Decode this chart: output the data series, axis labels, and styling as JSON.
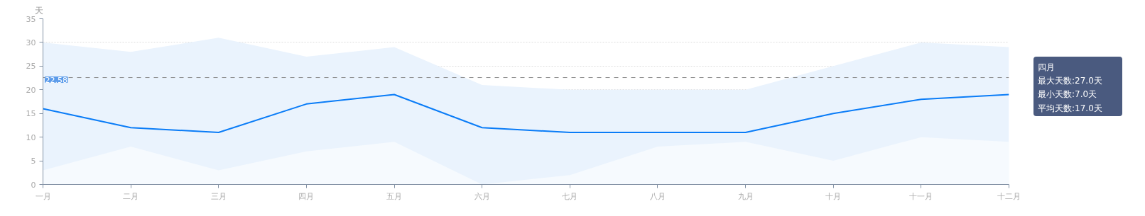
{
  "chart_data": {
    "type": "area",
    "ylabel": "天",
    "categories": [
      "一月",
      "二月",
      "三月",
      "四月",
      "五月",
      "六月",
      "七月",
      "八月",
      "九月",
      "十月",
      "十一月",
      "十二月"
    ],
    "series": [
      {
        "color": "#eaf3fd",
        "values": [
          30,
          28,
          31,
          27,
          29,
          21,
          20,
          20,
          20,
          25,
          30,
          29
        ]
      },
      {
        "color": "#f6fafe",
        "values": [
          3,
          8,
          3,
          7,
          9,
          0,
          2,
          8,
          9,
          5,
          10,
          9
        ]
      },
      {
        "type": "line",
        "color": "#0a7cf7",
        "values": [
          16,
          12,
          11,
          17,
          19,
          12,
          11,
          11,
          11,
          15,
          18,
          19
        ]
      }
    ],
    "ylim": [
      0,
      35
    ],
    "yticks": [
      0,
      5,
      10,
      15,
      20,
      25,
      30,
      35
    ],
    "grid": "y",
    "ref_lines": [
      {
        "axis": "y",
        "value": 22.58,
        "label": "22.58",
        "color": "#888888",
        "line_style": "dashed"
      }
    ],
    "annotations": [
      "四月",
      "最大天数:27.0天",
      "最小天数:7.0天",
      "平均天数:17.0天"
    ]
  }
}
